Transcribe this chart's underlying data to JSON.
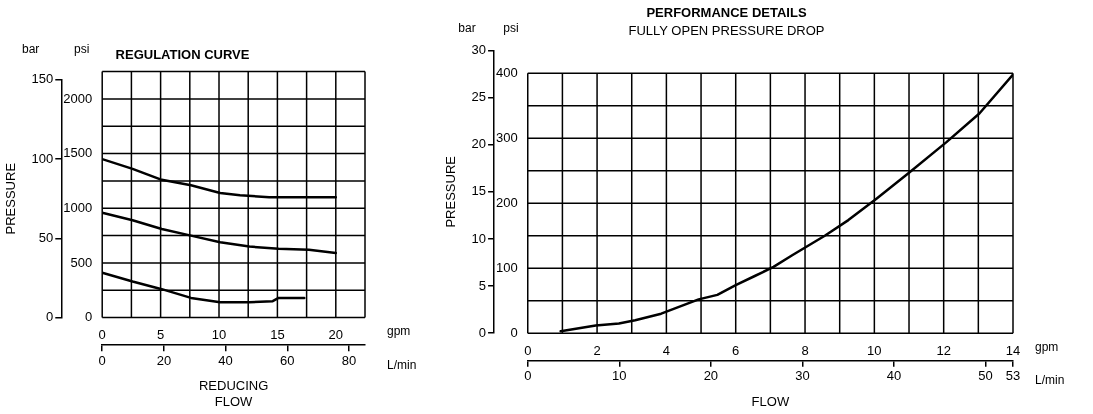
{
  "chart_data": [
    {
      "type": "line",
      "title": "REGULATION CURVE",
      "xlabel": "REDUCING FLOW",
      "y2label": "PRESSURE",
      "annotations": [
        "bar",
        "psi",
        "gpm",
        "L/min"
      ],
      "series": [
        {
          "color": "#000000",
          "x": [
            0,
            2.6,
            5.1,
            7.6,
            10.1,
            11.8,
            14.3,
            20
          ],
          "values": [
            1450,
            1360,
            1260,
            1210,
            1140,
            1120,
            1100,
            1100
          ]
        },
        {
          "color": "#000000",
          "x": [
            0,
            2.6,
            5.1,
            7.6,
            10.1,
            12.6,
            15.1,
            17.7,
            20
          ],
          "values": [
            960,
            890,
            810,
            750,
            690,
            650,
            630,
            620,
            590
          ]
        },
        {
          "color": "#000000",
          "x": [
            0,
            2.6,
            5.1,
            7.6,
            10.1,
            12.6,
            14.6,
            15.1,
            17.3
          ],
          "values": [
            410,
            330,
            260,
            180,
            140,
            140,
            150,
            180,
            180
          ]
        }
      ],
      "xlim": [
        0,
        22.5
      ],
      "xticks": [
        0,
        {
          "value": 2.5,
          "label": null
        },
        5,
        {
          "value": 7.5,
          "label": null
        },
        10,
        {
          "value": 12.5,
          "label": null
        },
        15,
        {
          "value": 17.5,
          "label": null
        },
        20,
        {
          "value": 22.5,
          "label": null
        }
      ],
      "x2lim": [
        0,
        85.2
      ],
      "x2ticks": [
        0,
        20,
        40,
        60,
        80
      ],
      "ylim": [
        0,
        2250
      ],
      "yticks": [
        0,
        {
          "value": 250,
          "label": null
        },
        500,
        {
          "value": 750,
          "label": null
        },
        1000,
        {
          "value": 1250,
          "label": null
        },
        1500,
        {
          "value": 1750,
          "label": null
        },
        2000,
        {
          "value": 2250,
          "label": null
        }
      ],
      "y2lim": [
        0,
        150
      ],
      "y2ticks": [
        0,
        50,
        100,
        150
      ],
      "grid": true,
      "legend": false
    },
    {
      "type": "line",
      "title": "PERFORMANCE DETAILS",
      "subtitle": "FULLY OPEN PRESSURE DROP",
      "xlabel": "FLOW",
      "y2label": "PRESSURE",
      "annotations": [
        "bar",
        "psi",
        "gpm",
        "L/min"
      ],
      "series": [
        {
          "color": "#000000",
          "x": [
            0.95,
            1.96,
            2.63,
            3.1,
            3.85,
            4.93,
            5.47,
            6.0,
            6.55,
            7.09,
            7.63,
            8.57,
            9.25,
            10.06,
            11.0,
            12.08,
            13.03,
            14
          ],
          "values": [
            3,
            12,
            15,
            20,
            30,
            52,
            59,
            74,
            88,
            102,
            120,
            150,
            174,
            207,
            247,
            294,
            338,
            398
          ]
        }
      ],
      "xlim": [
        0,
        14
      ],
      "xticks": [
        0,
        {
          "value": 1,
          "label": null
        },
        2,
        {
          "value": 3,
          "label": null
        },
        4,
        {
          "value": 5,
          "label": null
        },
        6,
        {
          "value": 7,
          "label": null
        },
        8,
        {
          "value": 9,
          "label": null
        },
        10,
        {
          "value": 11,
          "label": null
        },
        12,
        {
          "value": 13,
          "label": null
        },
        14
      ],
      "x2lim": [
        0,
        53
      ],
      "x2ticks": [
        0,
        10,
        20,
        30,
        40,
        50,
        53
      ],
      "ylim": [
        0,
        400
      ],
      "yticks": [
        0,
        {
          "value": 50,
          "label": null
        },
        100,
        {
          "value": 150,
          "label": null
        },
        200,
        {
          "value": 250,
          "label": null
        },
        300,
        {
          "value": 350,
          "label": null
        },
        400
      ],
      "y2lim": [
        0,
        30
      ],
      "y2ticks": [
        0,
        5,
        10,
        15,
        20,
        25,
        30
      ],
      "grid": true,
      "legend": false
    }
  ]
}
